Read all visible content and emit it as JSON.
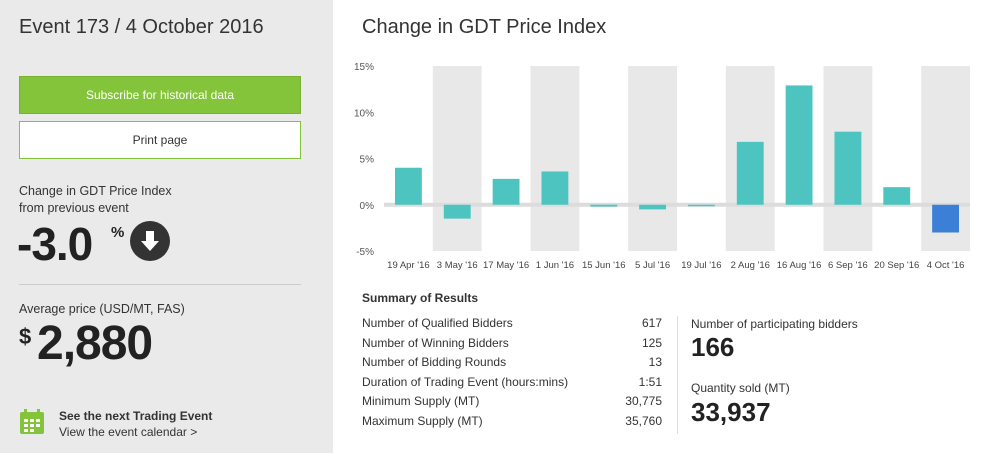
{
  "sidebar": {
    "event_title": "Event 173 / 4 October 2016",
    "subscribe_label": "Subscribe for historical data",
    "print_label": "Print page",
    "change_label_line1": "Change in GDT Price Index",
    "change_label_line2": "from previous event",
    "change_value": "-3.0",
    "change_unit": "%",
    "avg_label": "Average price (USD/MT, FAS)",
    "avg_currency": "$",
    "avg_value": "2,880",
    "next_title": "See the next Trading Event",
    "next_link": "View the event calendar >"
  },
  "main": {
    "chart_title": "Change in GDT Price Index",
    "summary_title": "Summary of Results",
    "summary_rows": [
      {
        "label": "Number of Qualified Bidders",
        "value": "617"
      },
      {
        "label": "Number of Winning Bidders",
        "value": "125"
      },
      {
        "label": "Number of Bidding Rounds",
        "value": "13"
      },
      {
        "label": "Duration of Trading Event (hours:mins)",
        "value": "1:51"
      },
      {
        "label": "Minimum Supply (MT)",
        "value": "30,775"
      },
      {
        "label": "Maximum Supply (MT)",
        "value": "35,760"
      }
    ],
    "participating_label": "Number of participating bidders",
    "participating_value": "166",
    "quantity_label": "Quantity sold (MT)",
    "quantity_value": "33,937"
  },
  "colors": {
    "accent_green": "#84c43b",
    "bar_teal": "#4dc4c0",
    "bar_highlight": "#3b7fd6"
  },
  "chart_data": {
    "type": "bar",
    "title": "Change in GDT Price Index",
    "categories": [
      "19 Apr '16",
      "3 May '16",
      "17 May '16",
      "1 Jun '16",
      "15 Jun '16",
      "5 Jul '16",
      "19 Jul '16",
      "2 Aug '16",
      "16 Aug '16",
      "6 Sep '16",
      "20 Sep '16",
      "4 Oct '16"
    ],
    "values": [
      4.0,
      -1.5,
      2.8,
      3.6,
      -0.2,
      -0.5,
      -0.1,
      6.8,
      12.9,
      7.9,
      1.9,
      -3.0
    ],
    "yticks": [
      "15%",
      "10%",
      "5%",
      "0%",
      "-5%"
    ],
    "ylim": [
      -5,
      15
    ],
    "grid": true,
    "highlight_last": true
  }
}
